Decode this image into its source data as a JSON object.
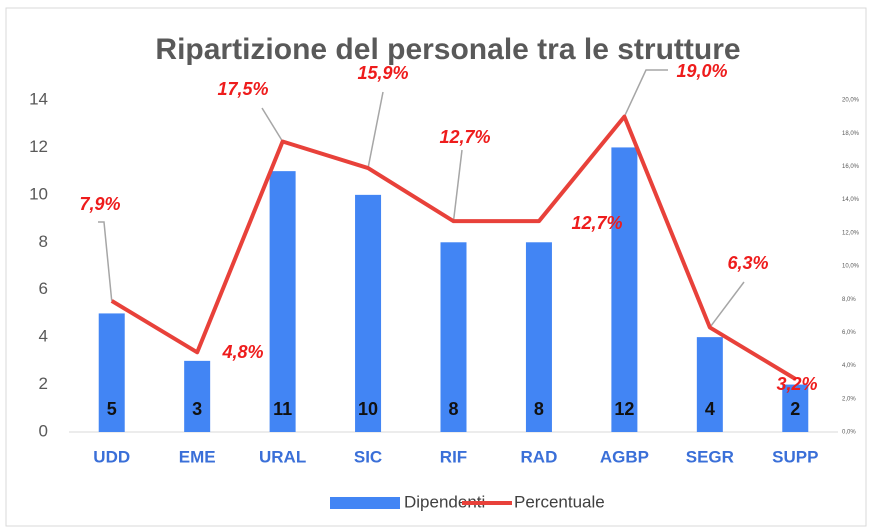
{
  "chart_data": {
    "type": "combo",
    "title": "Ripartizione del personale tra le strutture",
    "categories": [
      "UDD",
      "EME",
      "URAL",
      "SIC",
      "RIF",
      "RAD",
      "AGBP",
      "SEGR",
      "SUPP"
    ],
    "series": [
      {
        "name": "Dipendenti",
        "type": "bar",
        "color": "#4285f4",
        "values": [
          5,
          3,
          11,
          10,
          8,
          8,
          12,
          4,
          2
        ]
      },
      {
        "name": "Percentuale",
        "type": "line",
        "axis": "y2",
        "color": "#e8413a",
        "values": [
          7.9,
          4.8,
          17.5,
          15.9,
          12.7,
          12.7,
          19.0,
          6.3,
          3.2
        ],
        "value_labels": [
          "7,9%",
          "4,8%",
          "17,5%",
          "15,9%",
          "12,7%",
          "12,7%",
          "19,0%",
          "6,3%",
          "3,2%"
        ]
      }
    ],
    "ylim": [
      0,
      14
    ],
    "yticks": [
      0,
      2,
      4,
      6,
      8,
      10,
      12,
      14
    ],
    "y2lim": [
      0,
      20
    ],
    "y2ticks": [
      {
        "value": 0,
        "label": "0,0%"
      },
      {
        "value": 2,
        "label": "2,0%"
      },
      {
        "value": 4,
        "label": "4,0%"
      },
      {
        "value": 6,
        "label": "6,0%"
      },
      {
        "value": 8,
        "label": "8,0%"
      },
      {
        "value": 10,
        "label": "10,0%"
      },
      {
        "value": 12,
        "label": "12,0%"
      },
      {
        "value": 14,
        "label": "14,0%"
      },
      {
        "value": 16,
        "label": "16,0%"
      },
      {
        "value": 18,
        "label": "18,0%"
      },
      {
        "value": 20,
        "label": "20,0%"
      }
    ],
    "legend": "bottom"
  }
}
